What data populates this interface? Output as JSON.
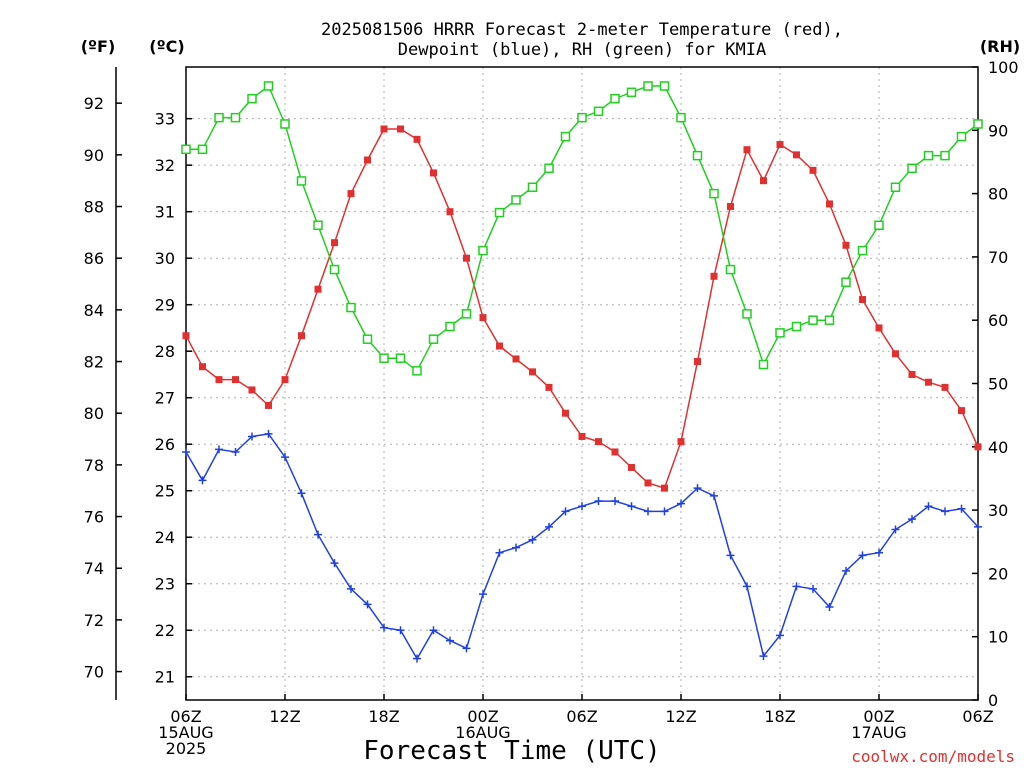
{
  "chart_data": {
    "type": "line",
    "title_line1": "2025081506 HRRR Forecast 2-meter Temperature (red),",
    "title_line2": "Dewpoint (blue), RH (green) for KMIA",
    "xlabel": "Forecast Time (UTC)",
    "credit": "coolwx.com/models",
    "axis_units": {
      "fahrenheit": "(ºF)",
      "celsius": "(ºC)",
      "rh": "(RH)"
    },
    "forecast_hours": [
      0,
      1,
      2,
      3,
      4,
      5,
      6,
      7,
      8,
      9,
      10,
      11,
      12,
      13,
      14,
      15,
      16,
      17,
      18,
      19,
      20,
      21,
      22,
      23,
      24,
      25,
      26,
      27,
      28,
      29,
      30,
      31,
      32,
      33,
      34,
      35,
      36,
      37,
      38,
      39,
      40,
      41,
      42,
      43,
      44,
      45,
      46,
      47,
      48
    ],
    "x_ticks": [
      {
        "hour": 0,
        "lines": [
          "06Z",
          "15AUG",
          "2025"
        ]
      },
      {
        "hour": 6,
        "lines": [
          "12Z"
        ]
      },
      {
        "hour": 12,
        "lines": [
          "18Z"
        ]
      },
      {
        "hour": 18,
        "lines": [
          "00Z",
          "16AUG"
        ]
      },
      {
        "hour": 24,
        "lines": [
          "06Z"
        ]
      },
      {
        "hour": 30,
        "lines": [
          "12Z"
        ]
      },
      {
        "hour": 36,
        "lines": [
          "18Z"
        ]
      },
      {
        "hour": 42,
        "lines": [
          "00Z",
          "17AUG"
        ]
      },
      {
        "hour": 48,
        "lines": [
          "06Z"
        ]
      }
    ],
    "celsius_ticks": [
      "21",
      "22",
      "23",
      "24",
      "25",
      "26",
      "27",
      "28",
      "29",
      "30",
      "31",
      "32",
      "33"
    ],
    "fahrenheit_ticks": [
      "70",
      "72",
      "74",
      "76",
      "78",
      "80",
      "82",
      "84",
      "86",
      "88",
      "90",
      "92"
    ],
    "rh_ticks": [
      "0",
      "10",
      "20",
      "30",
      "40",
      "50",
      "60",
      "70",
      "80",
      "90",
      "100"
    ],
    "ylim_fahrenheit": [
      68.9,
      93.4
    ],
    "ylim_rh": [
      0,
      100
    ],
    "grid": true,
    "series": [
      {
        "label": "Temperature",
        "units": "F",
        "color": "#e03030",
        "marker": "filled-square",
        "values": [
          83.0,
          81.8,
          81.3,
          81.3,
          80.9,
          80.3,
          81.3,
          83.0,
          84.8,
          86.6,
          88.5,
          89.8,
          91.0,
          91.0,
          90.6,
          89.3,
          87.8,
          86.0,
          83.7,
          82.6,
          82.1,
          81.6,
          81.0,
          80.0,
          79.1,
          78.9,
          78.5,
          77.9,
          77.3,
          77.1,
          78.9,
          82.0,
          85.3,
          88.0,
          90.2,
          89.0,
          90.4,
          90.0,
          89.4,
          88.1,
          86.5,
          84.4,
          83.3,
          82.3,
          81.5,
          81.2,
          81.0,
          80.1,
          78.7
        ]
      },
      {
        "label": "Dewpoint",
        "units": "F",
        "color": "#2040e0",
        "marker": "plus",
        "values": [
          78.5,
          77.4,
          78.6,
          78.5,
          79.1,
          79.2,
          78.3,
          76.9,
          75.3,
          74.2,
          73.2,
          72.6,
          71.7,
          71.6,
          70.5,
          71.6,
          71.2,
          70.9,
          73.0,
          74.6,
          74.8,
          75.1,
          75.6,
          76.2,
          76.4,
          76.6,
          76.6,
          76.4,
          76.2,
          76.2,
          76.5,
          77.1,
          76.8,
          74.5,
          73.3,
          70.6,
          71.4,
          73.3,
          73.2,
          72.5,
          73.9,
          74.5,
          74.6,
          75.5,
          75.9,
          76.4,
          76.2,
          76.3,
          75.6
        ]
      },
      {
        "label": "RH",
        "units": "%",
        "color": "#20d020",
        "marker": "open-square",
        "values": [
          87,
          87,
          92,
          92,
          95,
          97,
          91,
          82,
          75,
          68,
          62,
          57,
          54,
          54,
          52,
          57,
          59,
          61,
          71,
          77,
          79,
          81,
          84,
          89,
          92,
          93,
          95,
          96,
          97,
          97,
          92,
          86,
          80,
          68,
          61,
          53,
          58,
          59,
          60,
          60,
          66,
          71,
          75,
          81,
          84,
          86,
          86,
          89,
          91
        ]
      }
    ]
  }
}
